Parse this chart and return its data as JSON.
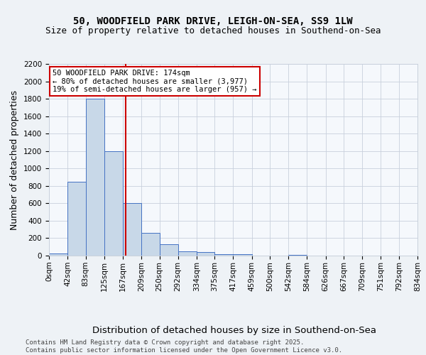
{
  "title1": "50, WOODFIELD PARK DRIVE, LEIGH-ON-SEA, SS9 1LW",
  "title2": "Size of property relative to detached houses in Southend-on-Sea",
  "xlabel": "Distribution of detached houses by size in Southend-on-Sea",
  "ylabel": "Number of detached properties",
  "bin_edges": [
    0,
    42,
    83,
    125,
    167,
    209,
    250,
    292,
    334,
    375,
    417,
    459,
    500,
    542,
    584,
    626,
    667,
    709,
    751,
    792,
    834
  ],
  "bar_heights": [
    25,
    850,
    1800,
    1200,
    600,
    260,
    130,
    50,
    40,
    20,
    15,
    0,
    0,
    10,
    0,
    0,
    0,
    0,
    0,
    0
  ],
  "bar_color": "#c8d8e8",
  "bar_edge_color": "#4472c4",
  "property_size": 174,
  "red_line_color": "#cc0000",
  "annotation_line1": "50 WOODFIELD PARK DRIVE: 174sqm",
  "annotation_line2": "← 80% of detached houses are smaller (3,977)",
  "annotation_line3": "19% of semi-detached houses are larger (957) →",
  "annotation_box_color": "white",
  "annotation_box_edge": "#cc0000",
  "ylim": [
    0,
    2200
  ],
  "yticks": [
    0,
    200,
    400,
    600,
    800,
    1000,
    1200,
    1400,
    1600,
    1800,
    2000,
    2200
  ],
  "footnote": "Contains HM Land Registry data © Crown copyright and database right 2025.\nContains public sector information licensed under the Open Government Licence v3.0.",
  "background_color": "#eef2f6",
  "plot_background": "#f5f8fc",
  "grid_color": "#c8d0dc",
  "title_fontsize": 10,
  "subtitle_fontsize": 9,
  "axis_label_fontsize": 9,
  "tick_fontsize": 7.5,
  "annotation_fontsize": 7.5,
  "footnote_fontsize": 6.5
}
